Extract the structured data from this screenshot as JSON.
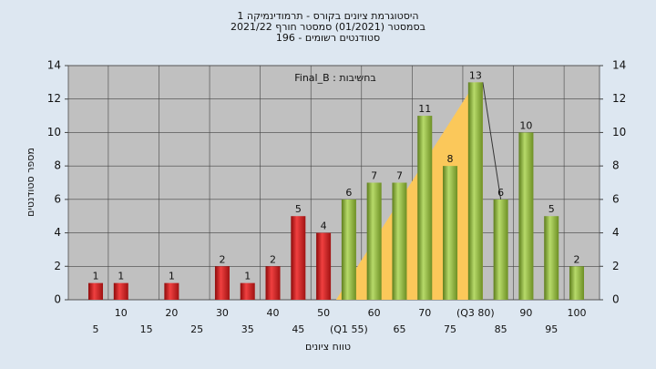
{
  "chart_data": {
    "type": "bar",
    "title": [
      "היסטוגרמת ציונים בקורס - תרמודינמיקה 1",
      "בסמסטר  (01/2021)  סמסטר חורף 2021/22",
      "סטודנטים רשומים - 196"
    ],
    "annotation": "Final_B : בחשיבות",
    "y_label": "מספר סטודנטים",
    "x_label": "טווח ציונים",
    "categories": [
      "5",
      "10",
      "15",
      "20",
      "25",
      "30",
      "35",
      "40",
      "45",
      "50",
      "(Q1 55)",
      "60",
      "65",
      "70",
      "75",
      "(Q3 80)",
      "85",
      "90",
      "95",
      "100"
    ],
    "values": [
      1,
      1,
      0,
      1,
      0,
      2,
      1,
      2,
      5,
      4,
      6,
      7,
      7,
      11,
      8,
      13,
      6,
      10,
      5,
      2
    ],
    "colors": [
      "red",
      "red",
      "red",
      "red",
      "red",
      "red",
      "red",
      "red",
      "red",
      "red",
      "green",
      "green",
      "green",
      "green",
      "green",
      "green",
      "green",
      "green",
      "green",
      "green"
    ],
    "ylim": [
      0,
      14
    ],
    "yticks": [
      0,
      2,
      4,
      6,
      8,
      10,
      12,
      14
    ],
    "grid": true
  }
}
